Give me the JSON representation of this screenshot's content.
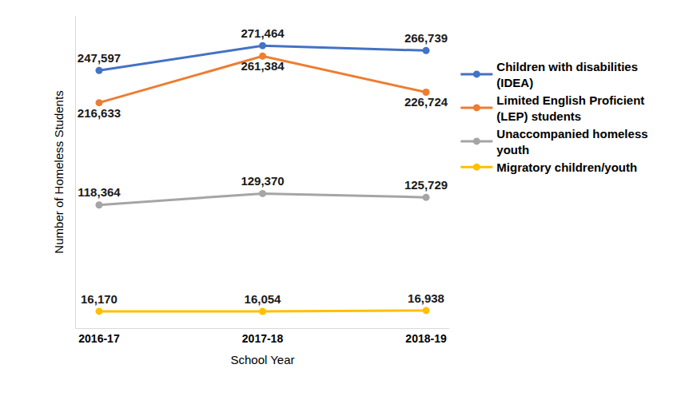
{
  "chart_data": {
    "type": "line",
    "x_label": "School Year",
    "y_label": "Number of Homeless Students",
    "categories": [
      "2016-17",
      "2017-18",
      "2018-19"
    ],
    "series": [
      {
        "name": "Children with disabilities (IDEA)",
        "color": "#4472C4",
        "marker": "circle",
        "values": [
          247597,
          271464,
          266739
        ],
        "value_labels": [
          "247,597",
          "271,464",
          "266,739"
        ]
      },
      {
        "name": "Limited English Proficient (LEP) students",
        "color": "#ED7D31",
        "marker": "circle",
        "values": [
          216633,
          261384,
          226724
        ],
        "value_labels": [
          "216,633",
          "261,384",
          "226,724"
        ]
      },
      {
        "name": "Unaccompanied homeless youth",
        "color": "#A5A5A5",
        "marker": "circle",
        "values": [
          118364,
          129370,
          125729
        ],
        "value_labels": [
          "118,364",
          "129,370",
          "125,729"
        ]
      },
      {
        "name": "Migratory children/youth",
        "color": "#FFC000",
        "marker": "circle",
        "values": [
          16170,
          16054,
          16938
        ],
        "value_labels": [
          "16,170",
          "16,054",
          "16,938"
        ]
      }
    ],
    "ylim": [
      0,
      300000
    ],
    "grid": false,
    "legend": "right",
    "data_labels": true,
    "tick_labels": "x"
  }
}
